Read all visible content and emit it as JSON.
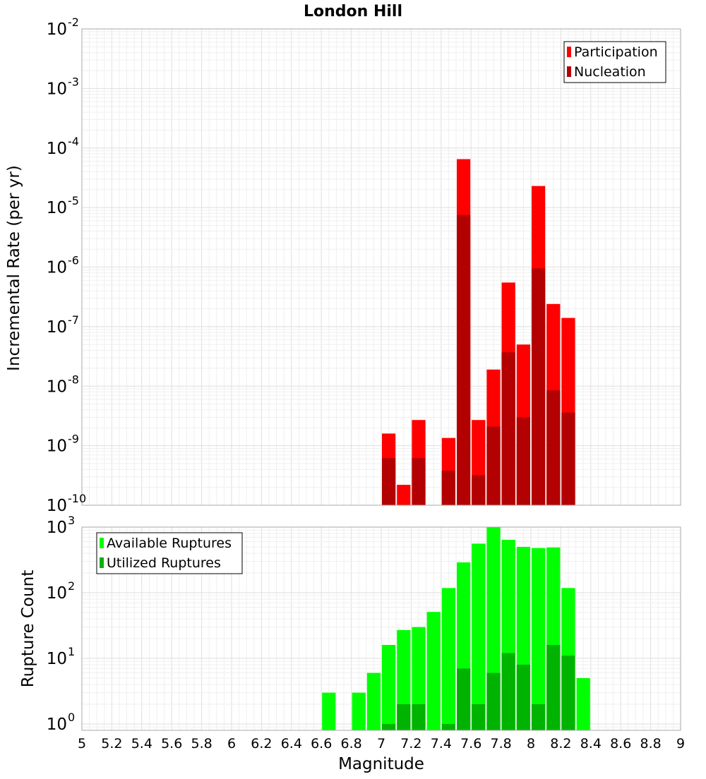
{
  "chart_data": [
    {
      "type": "bar",
      "title": "London Hill",
      "xlabel": "Magnitude",
      "ylabel": "Incremental Rate (per yr)",
      "yscale": "log",
      "ylim": [
        1e-10,
        0.01
      ],
      "xlim": [
        5,
        9
      ],
      "bar_width": 0.1,
      "grid": true,
      "legend_position": "top-right",
      "y_ticks": [
        {
          "base": "10",
          "exp": "-10",
          "value": 1e-10
        },
        {
          "base": "10",
          "exp": "-9",
          "value": 1e-09
        },
        {
          "base": "10",
          "exp": "-8",
          "value": 1e-08
        },
        {
          "base": "10",
          "exp": "-7",
          "value": 1e-07
        },
        {
          "base": "10",
          "exp": "-6",
          "value": 1e-06
        },
        {
          "base": "10",
          "exp": "-5",
          "value": 1e-05
        },
        {
          "base": "10",
          "exp": "-4",
          "value": 0.0001
        },
        {
          "base": "10",
          "exp": "-3",
          "value": 0.001
        },
        {
          "base": "10",
          "exp": "-2",
          "value": 0.01
        }
      ],
      "series": [
        {
          "name": "Participation",
          "color": "#ff0000",
          "points": [
            {
              "x": 7.05,
              "y": 1.6e-09
            },
            {
              "x": 7.15,
              "y": 2.2e-10
            },
            {
              "x": 7.25,
              "y": 2.7e-09
            },
            {
              "x": 7.45,
              "y": 1.35e-09
            },
            {
              "x": 7.55,
              "y": 6.5e-05
            },
            {
              "x": 7.65,
              "y": 2.7e-09
            },
            {
              "x": 7.75,
              "y": 1.9e-08
            },
            {
              "x": 7.85,
              "y": 5.5e-07
            },
            {
              "x": 7.95,
              "y": 5e-08
            },
            {
              "x": 8.05,
              "y": 2.3e-05
            },
            {
              "x": 8.15,
              "y": 2.4e-07
            },
            {
              "x": 8.25,
              "y": 1.4e-07
            }
          ]
        },
        {
          "name": "Nucleation",
          "color": "#b30000",
          "points": [
            {
              "x": 7.05,
              "y": 6.2e-10
            },
            {
              "x": 7.25,
              "y": 6.2e-10
            },
            {
              "x": 7.45,
              "y": 3.8e-10
            },
            {
              "x": 7.55,
              "y": 7.5e-06
            },
            {
              "x": 7.65,
              "y": 3.2e-10
            },
            {
              "x": 7.75,
              "y": 2.1e-09
            },
            {
              "x": 7.85,
              "y": 3.7e-08
            },
            {
              "x": 7.95,
              "y": 3e-09
            },
            {
              "x": 8.05,
              "y": 9.5e-07
            },
            {
              "x": 8.15,
              "y": 8.5e-09
            },
            {
              "x": 8.25,
              "y": 3.6e-09
            }
          ]
        }
      ]
    },
    {
      "type": "bar",
      "title": "",
      "xlabel": "Magnitude",
      "ylabel": "Rupture Count",
      "yscale": "log",
      "ylim": [
        0.8,
        1000
      ],
      "xlim": [
        5,
        9
      ],
      "bar_width": 0.1,
      "grid": true,
      "legend_position": "top-left",
      "x_ticks": [
        "5",
        "5.2",
        "5.4",
        "5.6",
        "5.8",
        "6",
        "6.2",
        "6.4",
        "6.6",
        "6.8",
        "7",
        "7.2",
        "7.4",
        "7.6",
        "7.8",
        "8",
        "8.2",
        "8.4",
        "8.6",
        "8.8",
        "9"
      ],
      "y_ticks": [
        {
          "base": "10",
          "exp": "0",
          "value": 1
        },
        {
          "base": "10",
          "exp": "1",
          "value": 10
        },
        {
          "base": "10",
          "exp": "2",
          "value": 100
        },
        {
          "base": "10",
          "exp": "3",
          "value": 1000
        }
      ],
      "series": [
        {
          "name": "Available Ruptures",
          "color": "#00ff00",
          "points": [
            {
              "x": 6.65,
              "y": 3
            },
            {
              "x": 6.85,
              "y": 3
            },
            {
              "x": 6.95,
              "y": 6
            },
            {
              "x": 7.05,
              "y": 16
            },
            {
              "x": 7.15,
              "y": 27
            },
            {
              "x": 7.25,
              "y": 30
            },
            {
              "x": 7.35,
              "y": 51
            },
            {
              "x": 7.45,
              "y": 118
            },
            {
              "x": 7.55,
              "y": 290
            },
            {
              "x": 7.65,
              "y": 560
            },
            {
              "x": 7.75,
              "y": 1000
            },
            {
              "x": 7.85,
              "y": 640
            },
            {
              "x": 7.95,
              "y": 500
            },
            {
              "x": 8.05,
              "y": 480
            },
            {
              "x": 8.15,
              "y": 490
            },
            {
              "x": 8.25,
              "y": 118
            },
            {
              "x": 8.35,
              "y": 5
            }
          ]
        },
        {
          "name": "Utilized Ruptures",
          "color": "#00b300",
          "points": [
            {
              "x": 7.05,
              "y": 1
            },
            {
              "x": 7.15,
              "y": 2
            },
            {
              "x": 7.25,
              "y": 2
            },
            {
              "x": 7.45,
              "y": 1
            },
            {
              "x": 7.55,
              "y": 7
            },
            {
              "x": 7.65,
              "y": 2
            },
            {
              "x": 7.75,
              "y": 6
            },
            {
              "x": 7.85,
              "y": 12
            },
            {
              "x": 7.95,
              "y": 8
            },
            {
              "x": 8.05,
              "y": 2
            },
            {
              "x": 8.15,
              "y": 16
            },
            {
              "x": 8.25,
              "y": 11
            }
          ]
        }
      ]
    }
  ]
}
